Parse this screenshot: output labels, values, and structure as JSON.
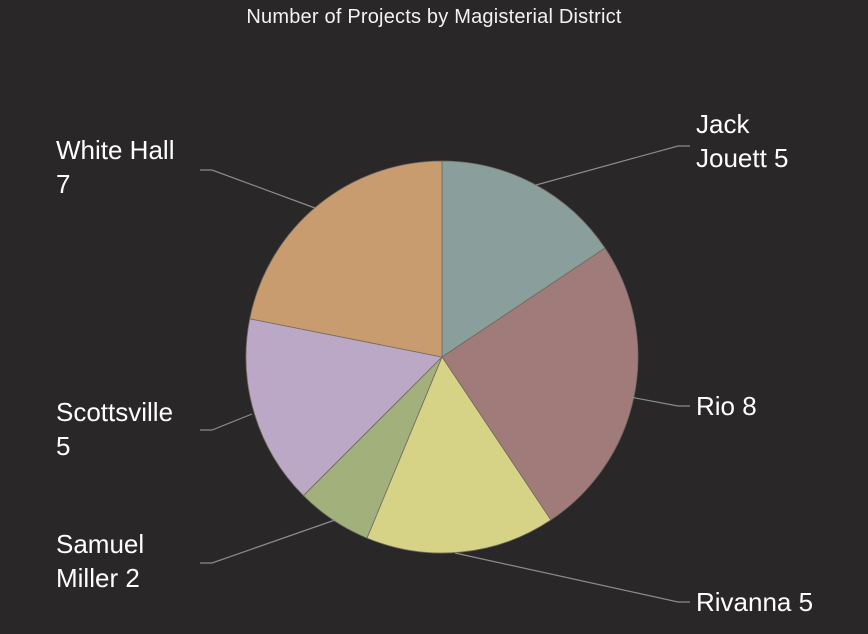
{
  "chart_data": {
    "type": "pie",
    "title": "Number of Projects by Magisterial District",
    "slices": [
      {
        "label": "Jack Jouett",
        "label_lines": [
          "Jack",
          "Jouett 5"
        ],
        "value": 5,
        "color": "#8a9e9b"
      },
      {
        "label": "Rio",
        "label_lines": [
          "Rio 8"
        ],
        "value": 8,
        "color": "#a07b7a"
      },
      {
        "label": "Rivanna",
        "label_lines": [
          "Rivanna 5"
        ],
        "value": 5,
        "color": "#d6d386"
      },
      {
        "label": "Samuel Miller",
        "label_lines": [
          "Samuel",
          "Miller 2"
        ],
        "value": 2,
        "color": "#a2b07b"
      },
      {
        "label": "Scottsville",
        "label_lines": [
          "Scottsville",
          "5"
        ],
        "value": 5,
        "color": "#bba8c6"
      },
      {
        "label": "White Hall",
        "label_lines": [
          "White Hall",
          "7"
        ],
        "value": 7,
        "color": "#c99c70"
      }
    ],
    "start_angle_deg": 0,
    "direction": "clockwise",
    "leader_line_color": "#8c8c8c",
    "background": "#292728"
  }
}
